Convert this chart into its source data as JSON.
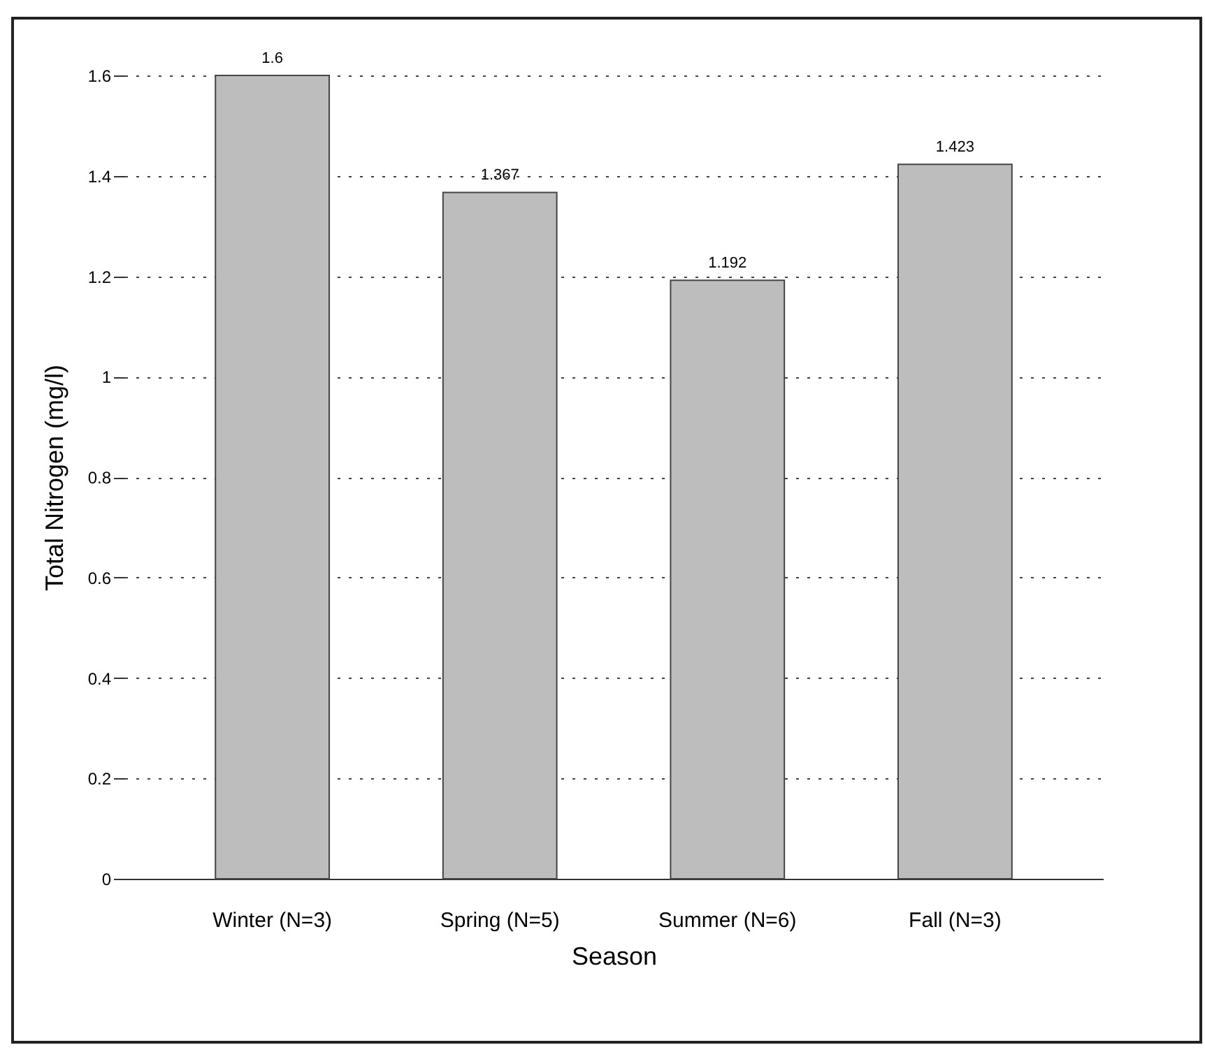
{
  "chart_data": {
    "type": "bar",
    "xlabel": "Season",
    "ylabel": "Total Nitrogen (mg/l)",
    "categories": [
      "Winter (N=3)",
      "Spring (N=5)",
      "Summer (N=6)",
      "Fall (N=3)"
    ],
    "values": [
      1.6,
      1.367,
      1.192,
      1.423
    ],
    "color": "#bdbdbd",
    "ylim": [
      0,
      1.6
    ],
    "yticks": [
      0,
      0.2,
      0.4,
      0.6,
      0.8,
      1,
      1.2,
      1.4,
      1.6
    ],
    "grid": "y",
    "data_labels": true
  }
}
